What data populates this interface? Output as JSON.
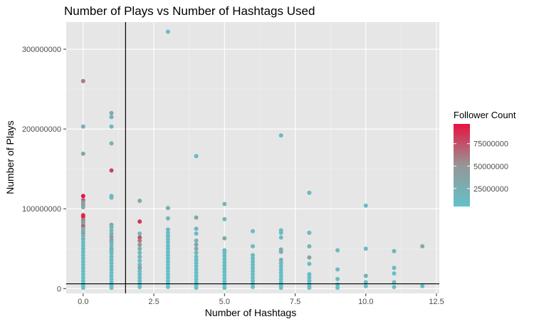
{
  "chart_data": {
    "type": "scatter",
    "title": "Number of Plays vs Number of Hashtags Used",
    "xlabel": "Number of Hashtags",
    "ylabel": "Number of Plays",
    "xlim": [
      -0.6,
      12.6
    ],
    "ylim": [
      -6000000,
      334000000
    ],
    "x_ticks": [
      0.0,
      2.5,
      5.0,
      7.5,
      10.0,
      12.5
    ],
    "x_tick_labels": [
      "0.0",
      "2.5",
      "5.0",
      "7.5",
      "10.0",
      "12.5"
    ],
    "y_ticks": [
      0,
      100000000,
      200000000,
      300000000
    ],
    "y_tick_labels": [
      "0",
      "100000000",
      "200000000",
      "300000000"
    ],
    "reference_lines": {
      "vline_x": 1.5,
      "hline_y": 6000000
    },
    "legend": {
      "title": "Follower Count",
      "position": "right",
      "range": [
        5000000,
        97000000
      ],
      "ticks": [
        25000000,
        50000000,
        75000000
      ],
      "tick_labels": [
        "25000000",
        "50000000",
        "75000000"
      ],
      "color_low": "#63c1c9",
      "color_high": "#e8123f"
    },
    "panel_background": "#e6e6e6",
    "grid": true,
    "points": [
      [
        0,
        260000000,
        60000000
      ],
      [
        0,
        203000000,
        25000000
      ],
      [
        0,
        169000000,
        35000000
      ],
      [
        0,
        116000000,
        95000000
      ],
      [
        0,
        111000000,
        70000000
      ],
      [
        0,
        108000000,
        40000000
      ],
      [
        0,
        105000000,
        45000000
      ],
      [
        0,
        102000000,
        30000000
      ],
      [
        0,
        92000000,
        85000000
      ],
      [
        0,
        90000000,
        90000000
      ],
      [
        0,
        86000000,
        60000000
      ],
      [
        0,
        83000000,
        50000000
      ],
      [
        0,
        80000000,
        40000000
      ],
      [
        0,
        78000000,
        70000000
      ],
      [
        0,
        75000000,
        30000000
      ],
      [
        0,
        72000000,
        20000000
      ],
      [
        0,
        69000000,
        40000000
      ],
      [
        0,
        66000000,
        15000000
      ],
      [
        0,
        62000000,
        20000000
      ],
      [
        0,
        58000000,
        10000000
      ],
      [
        0,
        54000000,
        10000000
      ],
      [
        0,
        50000000,
        12000000
      ],
      [
        0,
        46000000,
        10000000
      ],
      [
        0,
        42000000,
        8000000
      ],
      [
        0,
        38000000,
        10000000
      ],
      [
        0,
        34000000,
        8000000
      ],
      [
        0,
        30000000,
        8000000
      ],
      [
        0,
        26000000,
        10000000
      ],
      [
        0,
        22000000,
        8000000
      ],
      [
        0,
        18000000,
        6000000
      ],
      [
        0,
        14000000,
        6000000
      ],
      [
        0,
        10000000,
        5000000
      ],
      [
        0,
        6000000,
        5000000
      ],
      [
        0,
        3000000,
        5000000
      ],
      [
        0,
        1000000,
        5000000
      ],
      [
        1,
        220000000,
        30000000
      ],
      [
        1,
        215000000,
        20000000
      ],
      [
        1,
        203000000,
        15000000
      ],
      [
        1,
        182000000,
        20000000
      ],
      [
        1,
        148000000,
        80000000
      ],
      [
        1,
        116000000,
        15000000
      ],
      [
        1,
        114000000,
        15000000
      ],
      [
        1,
        80000000,
        30000000
      ],
      [
        1,
        77000000,
        20000000
      ],
      [
        1,
        73000000,
        15000000
      ],
      [
        1,
        69000000,
        20000000
      ],
      [
        1,
        65000000,
        45000000
      ],
      [
        1,
        61000000,
        40000000
      ],
      [
        1,
        58000000,
        20000000
      ],
      [
        1,
        54000000,
        15000000
      ],
      [
        1,
        50000000,
        30000000
      ],
      [
        1,
        47000000,
        12000000
      ],
      [
        1,
        44000000,
        10000000
      ],
      [
        1,
        40000000,
        15000000
      ],
      [
        1,
        36000000,
        10000000
      ],
      [
        1,
        32000000,
        8000000
      ],
      [
        1,
        28000000,
        8000000
      ],
      [
        1,
        24000000,
        10000000
      ],
      [
        1,
        20000000,
        6000000
      ],
      [
        1,
        16000000,
        6000000
      ],
      [
        1,
        12000000,
        5000000
      ],
      [
        1,
        8000000,
        5000000
      ],
      [
        1,
        4000000,
        5000000
      ],
      [
        1,
        1000000,
        5000000
      ],
      [
        2,
        110000000,
        30000000
      ],
      [
        2,
        84000000,
        85000000
      ],
      [
        2,
        69000000,
        15000000
      ],
      [
        2,
        64000000,
        75000000
      ],
      [
        2,
        60000000,
        60000000
      ],
      [
        2,
        55000000,
        50000000
      ],
      [
        2,
        50000000,
        25000000
      ],
      [
        2,
        45000000,
        15000000
      ],
      [
        2,
        40000000,
        20000000
      ],
      [
        2,
        35000000,
        10000000
      ],
      [
        2,
        30000000,
        12000000
      ],
      [
        2,
        26000000,
        40000000
      ],
      [
        2,
        22000000,
        10000000
      ],
      [
        2,
        18000000,
        8000000
      ],
      [
        2,
        14000000,
        8000000
      ],
      [
        2,
        10000000,
        6000000
      ],
      [
        2,
        6000000,
        5000000
      ],
      [
        2,
        2000000,
        5000000
      ],
      [
        3,
        322000000,
        10000000
      ],
      [
        3,
        101000000,
        30000000
      ],
      [
        3,
        88000000,
        15000000
      ],
      [
        3,
        74000000,
        12000000
      ],
      [
        3,
        70000000,
        10000000
      ],
      [
        3,
        66000000,
        15000000
      ],
      [
        3,
        62000000,
        10000000
      ],
      [
        3,
        58000000,
        10000000
      ],
      [
        3,
        54000000,
        8000000
      ],
      [
        3,
        50000000,
        8000000
      ],
      [
        3,
        46000000,
        10000000
      ],
      [
        3,
        42000000,
        8000000
      ],
      [
        3,
        38000000,
        8000000
      ],
      [
        3,
        34000000,
        6000000
      ],
      [
        3,
        30000000,
        6000000
      ],
      [
        3,
        26000000,
        8000000
      ],
      [
        3,
        22000000,
        6000000
      ],
      [
        3,
        18000000,
        5000000
      ],
      [
        3,
        14000000,
        5000000
      ],
      [
        3,
        10000000,
        5000000
      ],
      [
        3,
        6000000,
        5000000
      ],
      [
        3,
        2000000,
        5000000
      ],
      [
        4,
        166000000,
        12000000
      ],
      [
        4,
        89000000,
        35000000
      ],
      [
        4,
        75000000,
        15000000
      ],
      [
        4,
        69000000,
        12000000
      ],
      [
        4,
        60000000,
        20000000
      ],
      [
        4,
        55000000,
        35000000
      ],
      [
        4,
        50000000,
        30000000
      ],
      [
        4,
        45000000,
        15000000
      ],
      [
        4,
        40000000,
        12000000
      ],
      [
        4,
        36000000,
        10000000
      ],
      [
        4,
        32000000,
        8000000
      ],
      [
        4,
        28000000,
        8000000
      ],
      [
        4,
        24000000,
        10000000
      ],
      [
        4,
        20000000,
        6000000
      ],
      [
        4,
        16000000,
        6000000
      ],
      [
        4,
        12000000,
        5000000
      ],
      [
        4,
        8000000,
        5000000
      ],
      [
        4,
        4000000,
        5000000
      ],
      [
        4,
        1000000,
        5000000
      ],
      [
        5,
        106000000,
        20000000
      ],
      [
        5,
        87000000,
        12000000
      ],
      [
        5,
        63000000,
        30000000
      ],
      [
        5,
        48000000,
        15000000
      ],
      [
        5,
        45000000,
        10000000
      ],
      [
        5,
        41000000,
        12000000
      ],
      [
        5,
        37000000,
        10000000
      ],
      [
        5,
        33000000,
        8000000
      ],
      [
        5,
        29000000,
        8000000
      ],
      [
        5,
        25000000,
        8000000
      ],
      [
        5,
        21000000,
        6000000
      ],
      [
        5,
        17000000,
        6000000
      ],
      [
        5,
        13000000,
        5000000
      ],
      [
        5,
        9000000,
        5000000
      ],
      [
        5,
        5000000,
        5000000
      ],
      [
        5,
        1000000,
        5000000
      ],
      [
        6,
        72000000,
        10000000
      ],
      [
        6,
        53000000,
        10000000
      ],
      [
        6,
        42000000,
        15000000
      ],
      [
        6,
        38000000,
        12000000
      ],
      [
        6,
        34000000,
        8000000
      ],
      [
        6,
        30000000,
        10000000
      ],
      [
        6,
        26000000,
        8000000
      ],
      [
        6,
        22000000,
        8000000
      ],
      [
        6,
        18000000,
        6000000
      ],
      [
        6,
        14000000,
        6000000
      ],
      [
        6,
        10000000,
        5000000
      ],
      [
        6,
        6000000,
        5000000
      ],
      [
        6,
        2000000,
        5000000
      ],
      [
        7,
        192000000,
        15000000
      ],
      [
        7,
        73000000,
        10000000
      ],
      [
        7,
        70000000,
        12000000
      ],
      [
        7,
        64000000,
        10000000
      ],
      [
        7,
        49000000,
        25000000
      ],
      [
        7,
        46000000,
        30000000
      ],
      [
        7,
        36000000,
        25000000
      ],
      [
        7,
        32000000,
        12000000
      ],
      [
        7,
        28000000,
        10000000
      ],
      [
        7,
        24000000,
        8000000
      ],
      [
        7,
        20000000,
        8000000
      ],
      [
        7,
        16000000,
        6000000
      ],
      [
        7,
        12000000,
        5000000
      ],
      [
        7,
        8000000,
        5000000
      ],
      [
        7,
        4000000,
        5000000
      ],
      [
        7,
        1000000,
        5000000
      ],
      [
        8,
        120000000,
        12000000
      ],
      [
        8,
        70000000,
        12000000
      ],
      [
        8,
        53000000,
        20000000
      ],
      [
        8,
        39000000,
        40000000
      ],
      [
        8,
        31000000,
        10000000
      ],
      [
        8,
        18000000,
        10000000
      ],
      [
        8,
        14000000,
        8000000
      ],
      [
        8,
        10000000,
        6000000
      ],
      [
        8,
        6000000,
        5000000
      ],
      [
        8,
        3000000,
        5000000
      ],
      [
        8,
        1000000,
        5000000
      ],
      [
        9,
        48000000,
        15000000
      ],
      [
        9,
        24000000,
        10000000
      ],
      [
        9,
        12000000,
        8000000
      ],
      [
        9,
        5000000,
        6000000
      ],
      [
        9,
        1000000,
        5000000
      ],
      [
        10,
        104000000,
        10000000
      ],
      [
        10,
        50000000,
        12000000
      ],
      [
        10,
        16000000,
        20000000
      ],
      [
        10,
        8000000,
        10000000
      ],
      [
        10,
        3000000,
        6000000
      ],
      [
        11,
        47000000,
        20000000
      ],
      [
        11,
        26000000,
        10000000
      ],
      [
        11,
        19000000,
        8000000
      ],
      [
        11,
        8000000,
        8000000
      ],
      [
        11,
        2000000,
        6000000
      ],
      [
        12,
        53000000,
        30000000
      ],
      [
        12,
        3000000,
        10000000
      ]
    ]
  }
}
